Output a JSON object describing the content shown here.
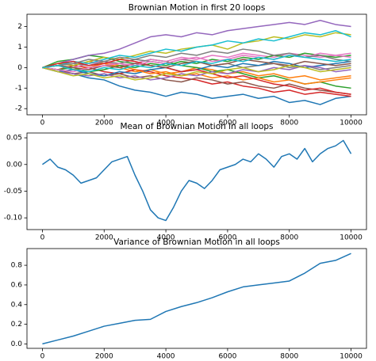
{
  "chart_data": [
    {
      "type": "line",
      "title": "Brownian Motion in first 20 loops",
      "x": [
        0,
        500,
        1000,
        1500,
        2000,
        2500,
        3000,
        3500,
        4000,
        4500,
        5000,
        5500,
        6000,
        6500,
        7000,
        7500,
        8000,
        8500,
        9000,
        9500,
        10000
      ],
      "xlim": [
        -500,
        10500
      ],
      "xticks": [
        0,
        2000,
        4000,
        6000,
        8000,
        10000
      ],
      "ylim": [
        -2.3,
        2.6
      ],
      "yticks": [
        -2,
        -1,
        0,
        1,
        2
      ],
      "series": [
        {
          "color": "#1f77b4",
          "values": [
            0,
            -0.2,
            -0.3,
            -0.5,
            -0.6,
            -0.9,
            -1.1,
            -1.2,
            -1.4,
            -1.2,
            -1.3,
            -1.5,
            -1.4,
            -1.3,
            -1.5,
            -1.4,
            -1.7,
            -1.6,
            -1.8,
            -1.5,
            -1.4
          ]
        },
        {
          "color": "#ff7f0e",
          "values": [
            0,
            0.2,
            0.1,
            0.3,
            0.2,
            0.0,
            -0.2,
            -0.1,
            -0.3,
            -0.2,
            0.0,
            -0.1,
            -0.3,
            -0.2,
            -0.4,
            -0.3,
            -0.5,
            -0.4,
            -0.6,
            -0.5,
            -0.4
          ]
        },
        {
          "color": "#2ca02c",
          "values": [
            0,
            0.3,
            0.4,
            0.6,
            0.5,
            0.3,
            0.2,
            0.4,
            0.3,
            0.1,
            0.0,
            -0.2,
            -0.1,
            -0.3,
            -0.5,
            -0.4,
            -0.6,
            -0.8,
            -0.7,
            -0.9,
            -1.0
          ]
        },
        {
          "color": "#d62728",
          "values": [
            0,
            -0.1,
            0.1,
            0.0,
            -0.2,
            -0.3,
            -0.1,
            -0.2,
            -0.4,
            -0.5,
            -0.6,
            -0.8,
            -0.7,
            -0.9,
            -1.0,
            -1.2,
            -1.1,
            -1.3,
            -1.2,
            -1.3,
            -1.4
          ]
        },
        {
          "color": "#9467bd",
          "values": [
            0,
            0.2,
            0.4,
            0.6,
            0.7,
            0.9,
            1.2,
            1.5,
            1.6,
            1.5,
            1.7,
            1.6,
            1.8,
            1.9,
            2.0,
            2.1,
            2.2,
            2.1,
            2.3,
            2.1,
            2.0
          ]
        },
        {
          "color": "#8c564b",
          "values": [
            0,
            -0.1,
            -0.3,
            -0.2,
            -0.4,
            -0.3,
            -0.5,
            -0.4,
            -0.6,
            -0.7,
            -0.5,
            -0.6,
            -0.8,
            -0.7,
            -0.9,
            -1.0,
            -0.8,
            -1.0,
            -1.1,
            -1.2,
            -1.3
          ]
        },
        {
          "color": "#e377c2",
          "values": [
            0,
            0.1,
            0.0,
            0.2,
            0.3,
            0.1,
            0.2,
            0.4,
            0.3,
            0.5,
            0.4,
            0.6,
            0.5,
            0.7,
            0.6,
            0.5,
            0.7,
            0.6,
            0.5,
            0.6,
            0.7
          ]
        },
        {
          "color": "#7f7f7f",
          "values": [
            0,
            0.1,
            0.2,
            0.1,
            0.3,
            0.2,
            0.4,
            0.3,
            0.2,
            0.4,
            0.3,
            0.1,
            0.2,
            0.0,
            0.1,
            0.2,
            0.0,
            0.1,
            -0.1,
            0.0,
            0.1
          ]
        },
        {
          "color": "#bcbd22",
          "values": [
            0,
            0.2,
            0.1,
            0.3,
            0.5,
            0.4,
            0.6,
            0.8,
            0.7,
            0.9,
            1.0,
            1.1,
            0.9,
            1.2,
            1.3,
            1.5,
            1.4,
            1.6,
            1.5,
            1.7,
            1.6
          ]
        },
        {
          "color": "#17becf",
          "values": [
            0,
            0.1,
            0.3,
            0.2,
            0.4,
            0.6,
            0.5,
            0.7,
            0.9,
            0.8,
            1.0,
            1.1,
            1.3,
            1.2,
            1.4,
            1.3,
            1.5,
            1.7,
            1.6,
            1.8,
            1.5
          ]
        },
        {
          "color": "#1f77b4",
          "values": [
            0,
            -0.2,
            -0.1,
            -0.3,
            -0.4,
            -0.2,
            -0.3,
            -0.1,
            0.0,
            -0.2,
            -0.1,
            0.1,
            0.0,
            0.2,
            0.1,
            0.3,
            0.2,
            0.0,
            0.1,
            0.2,
            0.3
          ]
        },
        {
          "color": "#ff7f0e",
          "values": [
            0,
            0.1,
            -0.1,
            0.0,
            0.2,
            0.1,
            -0.1,
            -0.3,
            -0.2,
            -0.4,
            -0.3,
            -0.5,
            -0.4,
            -0.6,
            -0.5,
            -0.7,
            -0.6,
            -0.8,
            -0.7,
            -0.6,
            -0.5
          ]
        },
        {
          "color": "#2ca02c",
          "values": [
            0,
            -0.1,
            0.0,
            -0.2,
            -0.1,
            0.1,
            0.0,
            0.2,
            0.1,
            0.3,
            0.2,
            0.4,
            0.3,
            0.5,
            0.4,
            0.6,
            0.5,
            0.7,
            0.6,
            0.5,
            0.6
          ]
        },
        {
          "color": "#d62728",
          "values": [
            0,
            0.2,
            0.3,
            0.1,
            0.2,
            0.4,
            0.3,
            0.1,
            0.0,
            -0.2,
            -0.1,
            -0.3,
            -0.5,
            -0.4,
            -0.6,
            -0.8,
            -0.9,
            -1.1,
            -1.0,
            -1.2,
            -1.3
          ]
        },
        {
          "color": "#9467bd",
          "values": [
            0,
            -0.2,
            -0.3,
            -0.4,
            -0.3,
            -0.5,
            -0.4,
            -0.6,
            -0.5,
            -0.3,
            -0.4,
            -0.2,
            -0.3,
            -0.1,
            -0.2,
            0.0,
            -0.1,
            0.1,
            0.0,
            -0.2,
            -0.1
          ]
        },
        {
          "color": "#8c564b",
          "values": [
            0,
            0.1,
            0.0,
            -0.1,
            0.1,
            0.0,
            0.2,
            0.1,
            0.0,
            0.2,
            0.3,
            0.1,
            0.2,
            0.4,
            0.3,
            0.2,
            0.1,
            0.3,
            0.2,
            0.1,
            0.2
          ]
        },
        {
          "color": "#e377c2",
          "values": [
            0,
            -0.1,
            -0.2,
            0.0,
            0.1,
            0.2,
            0.1,
            0.3,
            0.2,
            0.4,
            0.5,
            0.3,
            0.4,
            0.6,
            0.5,
            0.4,
            0.6,
            0.5,
            0.7,
            0.6,
            0.5
          ]
        },
        {
          "color": "#7f7f7f",
          "values": [
            0,
            0.1,
            0.2,
            0.4,
            0.3,
            0.5,
            0.4,
            0.6,
            0.5,
            0.7,
            0.6,
            0.8,
            0.7,
            0.9,
            0.8,
            0.6,
            0.7,
            0.5,
            0.6,
            0.4,
            0.3
          ]
        },
        {
          "color": "#bcbd22",
          "values": [
            0,
            -0.2,
            -0.4,
            -0.3,
            -0.5,
            -0.4,
            -0.6,
            -0.5,
            -0.3,
            -0.4,
            -0.2,
            -0.3,
            -0.1,
            0.0,
            -0.2,
            -0.1,
            0.1,
            0.0,
            -0.2,
            -0.1,
            0.0
          ]
        },
        {
          "color": "#17becf",
          "values": [
            0,
            0.1,
            -0.1,
            -0.2,
            0.0,
            -0.1,
            0.1,
            0.0,
            0.2,
            0.1,
            0.3,
            0.2,
            0.4,
            0.3,
            0.5,
            0.4,
            0.6,
            0.5,
            0.4,
            0.3,
            0.4
          ]
        }
      ]
    },
    {
      "type": "line",
      "title": "Mean of Brownian Motion in all loops",
      "x": [
        0,
        250,
        500,
        750,
        1000,
        1250,
        1500,
        1750,
        2000,
        2250,
        2500,
        2750,
        3000,
        3250,
        3500,
        3750,
        4000,
        4250,
        4500,
        4750,
        5000,
        5250,
        5500,
        5750,
        6000,
        6250,
        6500,
        6750,
        7000,
        7250,
        7500,
        7750,
        8000,
        8250,
        8500,
        8750,
        9000,
        9250,
        9500,
        9750,
        10000
      ],
      "xlim": [
        -500,
        10500
      ],
      "xticks": [
        0,
        2000,
        4000,
        6000,
        8000,
        10000
      ],
      "ylim": [
        -0.122,
        0.059
      ],
      "yticks": [
        {
          "value": -0.1,
          "label": "-0.10"
        },
        {
          "value": -0.05,
          "label": "-0.05"
        },
        {
          "value": 0,
          "label": "0.00"
        },
        0.05
      ],
      "series": [
        {
          "color": "#1f77b4",
          "values": [
            0.0,
            0.01,
            -0.005,
            -0.01,
            -0.02,
            -0.035,
            -0.03,
            -0.025,
            -0.01,
            0.005,
            0.01,
            0.015,
            -0.02,
            -0.05,
            -0.085,
            -0.1,
            -0.105,
            -0.08,
            -0.05,
            -0.03,
            -0.035,
            -0.045,
            -0.03,
            -0.01,
            -0.005,
            0.0,
            0.01,
            0.005,
            0.02,
            0.01,
            -0.005,
            0.015,
            0.02,
            0.01,
            0.03,
            0.005,
            0.02,
            0.03,
            0.035,
            0.045,
            0.02
          ]
        }
      ]
    },
    {
      "type": "line",
      "title": "Variance of Brownian Motion in all loops",
      "x": [
        0,
        500,
        1000,
        1500,
        2000,
        2500,
        3000,
        3500,
        4000,
        4500,
        5000,
        5500,
        6000,
        6500,
        7000,
        7500,
        8000,
        8500,
        9000,
        9500,
        10000
      ],
      "xlim": [
        -500,
        10500
      ],
      "xticks": [
        0,
        2000,
        4000,
        6000,
        8000,
        10000
      ],
      "ylim": [
        -0.045,
        0.97
      ],
      "yticks": [
        {
          "value": 0,
          "label": "0.0"
        },
        0.2,
        0.4,
        0.6,
        0.8
      ],
      "series": [
        {
          "color": "#1f77b4",
          "values": [
            0.0,
            0.04,
            0.08,
            0.13,
            0.18,
            0.21,
            0.24,
            0.25,
            0.33,
            0.38,
            0.42,
            0.47,
            0.53,
            0.58,
            0.6,
            0.62,
            0.64,
            0.72,
            0.82,
            0.85,
            0.92
          ]
        }
      ]
    }
  ]
}
